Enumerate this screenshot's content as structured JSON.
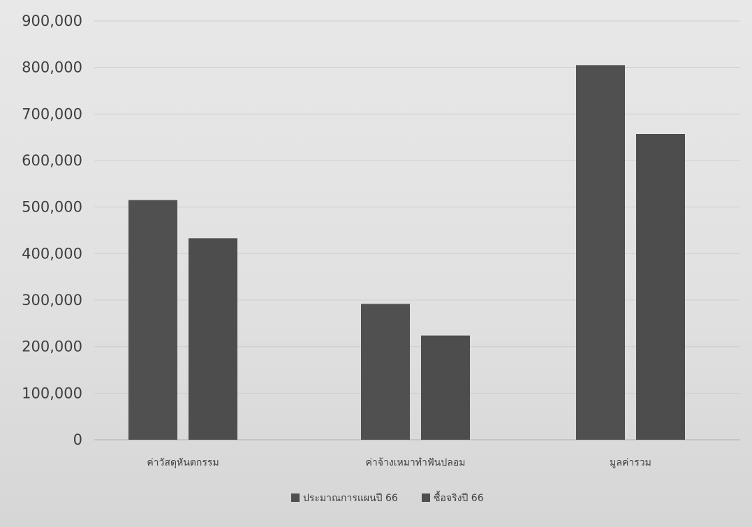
{
  "chart_data": {
    "type": "bar",
    "categories": [
      "ค่าวัสดุหันตกรรม",
      "ค่าจ้างเหมาทำฟันปลอม",
      "มูลค่ารวม"
    ],
    "series": [
      {
        "name": "ประมาณการแผนปี 66",
        "values": [
          515000,
          292000,
          805000
        ]
      },
      {
        "name": "ซื้อจริงปี 66",
        "values": [
          433000,
          224000,
          657000
        ]
      }
    ],
    "ylim": [
      0,
      900000
    ],
    "yticks": [
      "0",
      "100,000",
      "200,000",
      "300,000",
      "400,000",
      "500,000",
      "600,000",
      "700,000",
      "800,000",
      "900,000"
    ],
    "grid": true,
    "legend_position": "bottom",
    "colors": {
      "series": [
        "#505050",
        "#4d4d4d"
      ]
    }
  }
}
